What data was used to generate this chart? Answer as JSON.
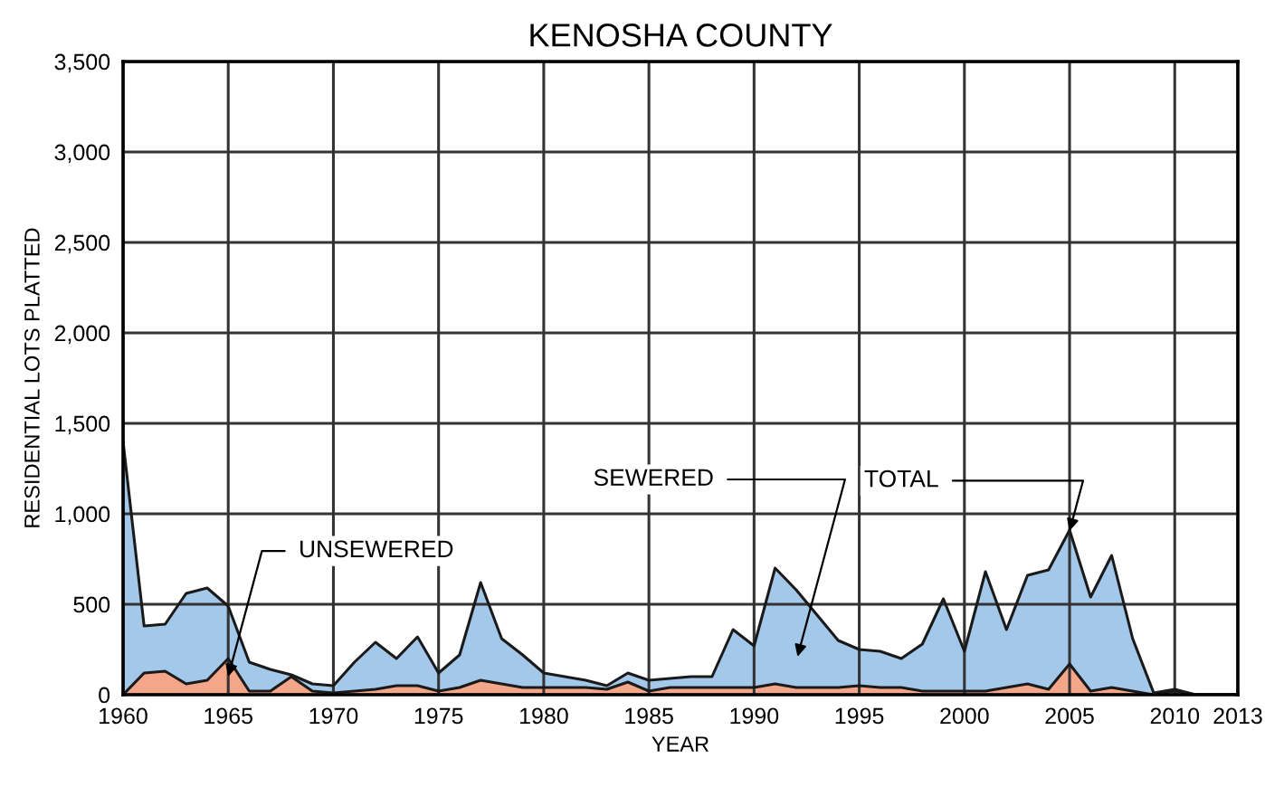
{
  "chart_data": {
    "type": "area",
    "title": "KENOSHA COUNTY",
    "xlabel": "YEAR",
    "ylabel": "RESIDENTIAL LOTS PLATTED",
    "stacked": true,
    "grid": true,
    "x": [
      1960,
      1961,
      1962,
      1963,
      1964,
      1965,
      1966,
      1967,
      1968,
      1969,
      1970,
      1971,
      1972,
      1973,
      1974,
      1975,
      1976,
      1977,
      1978,
      1979,
      1980,
      1981,
      1982,
      1983,
      1984,
      1985,
      1986,
      1987,
      1988,
      1989,
      1990,
      1991,
      1992,
      1993,
      1994,
      1995,
      1996,
      1997,
      1998,
      1999,
      2000,
      2001,
      2002,
      2003,
      2004,
      2005,
      2006,
      2007,
      2008,
      2009,
      2010,
      2011,
      2012,
      2013
    ],
    "series": [
      {
        "color": "#f4a68a",
        "values": [
          0,
          120,
          130,
          60,
          80,
          200,
          20,
          20,
          100,
          20,
          10,
          20,
          30,
          50,
          50,
          20,
          40,
          80,
          60,
          40,
          40,
          40,
          40,
          30,
          70,
          20,
          40,
          40,
          40,
          40,
          40,
          60,
          40,
          40,
          40,
          50,
          40,
          40,
          20,
          20,
          20,
          20,
          40,
          60,
          30,
          170,
          20,
          40,
          20,
          0,
          20,
          0,
          0,
          0
        ]
      },
      {
        "color": "#a3c8ea",
        "values": [
          1400,
          260,
          260,
          500,
          510,
          290,
          160,
          120,
          10,
          40,
          40,
          160,
          260,
          150,
          270,
          100,
          180,
          540,
          250,
          180,
          80,
          60,
          40,
          20,
          50,
          60,
          50,
          60,
          60,
          320,
          230,
          640,
          540,
          400,
          260,
          200,
          200,
          160,
          260,
          510,
          220,
          660,
          320,
          600,
          660,
          740,
          520,
          730,
          290,
          10,
          10,
          0,
          0,
          0
        ]
      }
    ],
    "xlim": [
      1960,
      2013
    ],
    "xticks": [
      1960,
      1965,
      1970,
      1975,
      1980,
      1985,
      1990,
      1995,
      2000,
      2005,
      2010,
      2013
    ],
    "ylim": [
      0,
      3500
    ],
    "yticks": [
      0,
      500,
      {
        "value": 1000,
        "label": "1,000"
      },
      {
        "value": 1500,
        "label": "1,500"
      },
      {
        "value": 2000,
        "label": "2,000"
      },
      {
        "value": 2500,
        "label": "2,500"
      },
      {
        "value": 3000,
        "label": "3,000"
      },
      {
        "value": 3500,
        "label": "3,500"
      }
    ],
    "annotations": [
      {
        "text": "UNSEWERED",
        "x": 1965,
        "y": 100
      },
      "SEWERED",
      {
        "text": "TOTAL",
        "x": 2005,
        "y": 905
      }
    ]
  }
}
